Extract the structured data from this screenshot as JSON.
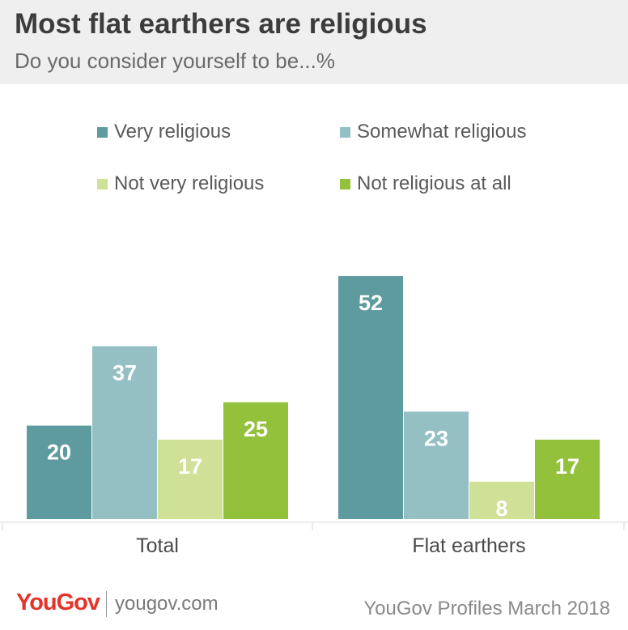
{
  "header": {
    "title": "Most flat earthers are religious",
    "subtitle": "Do you consider yourself to be...%"
  },
  "colors": {
    "header_bg": "#efefef",
    "very_religious": "#5e9b9e",
    "somewhat_religious": "#94c0c4",
    "not_very_religious": "#cfe197",
    "not_religious_at_all": "#94c13c"
  },
  "chart_data": {
    "type": "bar",
    "title": "Most flat earthers are religious",
    "subtitle": "Do you consider yourself to be...%",
    "categories": [
      "Total",
      "Flat earthers"
    ],
    "series": [
      {
        "name": "Very religious",
        "color": "#5e9b9e",
        "values": [
          20,
          52
        ]
      },
      {
        "name": "Somewhat religious",
        "color": "#94c0c4",
        "values": [
          37,
          23
        ]
      },
      {
        "name": "Not very religious",
        "color": "#cfe197",
        "values": [
          17,
          8
        ]
      },
      {
        "name": "Not religious at all",
        "color": "#94c13c",
        "values": [
          25,
          17
        ]
      }
    ],
    "ylim": [
      0,
      52
    ],
    "data_labels": true,
    "grid": false,
    "legend_position": "top"
  },
  "footer": {
    "logo": "YouGov",
    "site": "yougov.com",
    "source": "YouGov Profiles March 2018"
  }
}
